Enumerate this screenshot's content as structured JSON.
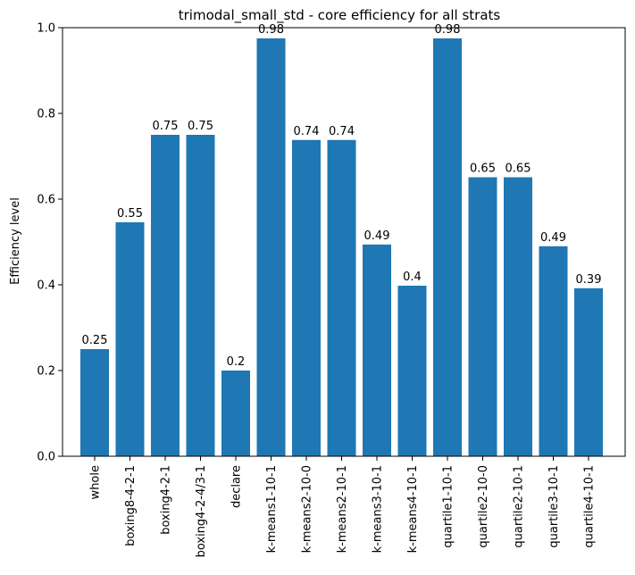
{
  "chart_data": {
    "type": "bar",
    "title": "trimodal_small_std - core efficiency for all strats",
    "xlabel": "",
    "ylabel": "Efficiency level",
    "ylim": [
      0,
      1.0
    ],
    "yticks": [
      0.0,
      0.2,
      0.4,
      0.6,
      0.8,
      1.0
    ],
    "ytick_labels": [
      "0.0",
      "0.2",
      "0.4",
      "0.6",
      "0.8",
      "1.0"
    ],
    "grid": false,
    "bar_color": "#1f77b4",
    "categories": [
      "whole",
      "boxing8-4-2-1",
      "boxing4-2-1",
      "boxing4-2-4/3-1",
      "declare",
      "k-means1-10-1",
      "k-means2-10-0",
      "k-means2-10-1",
      "k-means3-10-1",
      "k-means4-10-1",
      "quartile1-10-1",
      "quartile2-10-0",
      "quartile2-10-1",
      "quartile3-10-1",
      "quartile4-10-1"
    ],
    "values": [
      0.25,
      0.546,
      0.75,
      0.75,
      0.2,
      0.975,
      0.738,
      0.738,
      0.494,
      0.398,
      0.975,
      0.651,
      0.651,
      0.49,
      0.392
    ],
    "data_labels": [
      "0.25",
      "0.55",
      "0.75",
      "0.75",
      "0.2",
      "0.98",
      "0.74",
      "0.74",
      "0.49",
      "0.4",
      "0.98",
      "0.65",
      "0.65",
      "0.49",
      "0.39"
    ]
  }
}
